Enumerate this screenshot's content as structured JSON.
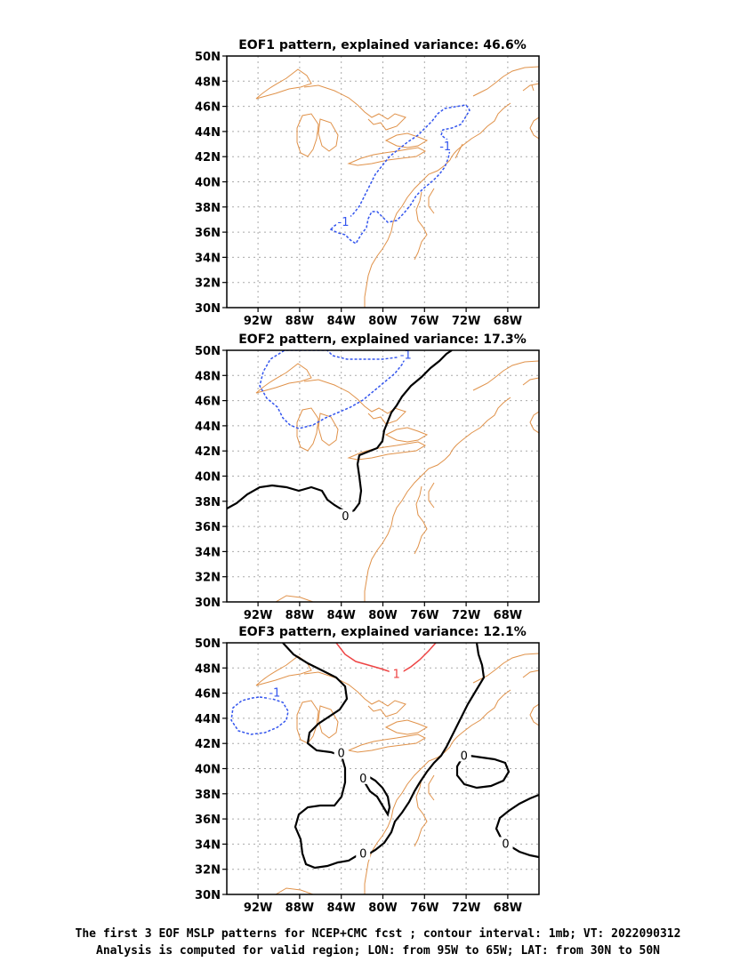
{
  "panels": [
    {
      "title": "EOF1 pattern, explained variance: 46.6%",
      "contour_labels": [
        {
          "text": "-1",
          "lon": -83.8,
          "lat": 36.8,
          "color": "#3355ee"
        },
        {
          "text": "-1",
          "lon": -74.0,
          "lat": 42.8,
          "color": "#3355ee"
        }
      ]
    },
    {
      "title": "EOF2 pattern, explained variance: 17.3%",
      "contour_labels": [
        {
          "text": "-1",
          "lon": -77.8,
          "lat": 49.6,
          "color": "#3355ee"
        },
        {
          "text": "0",
          "lon": -83.6,
          "lat": 36.8,
          "color": "#000000"
        }
      ]
    },
    {
      "title": "EOF3 pattern, explained variance: 12.1%",
      "contour_labels": [
        {
          "text": "1",
          "lon": -78.7,
          "lat": 47.5,
          "color": "#ee4444"
        },
        {
          "text": "-1",
          "lon": -90.4,
          "lat": 46.0,
          "color": "#3355ee"
        },
        {
          "text": "0",
          "lon": -84.0,
          "lat": 41.2,
          "color": "#000000"
        },
        {
          "text": "0",
          "lon": -81.9,
          "lat": 39.2,
          "color": "#000000"
        },
        {
          "text": "0",
          "lon": -81.9,
          "lat": 33.2,
          "color": "#000000"
        },
        {
          "text": "0",
          "lon": -72.2,
          "lat": 41.0,
          "color": "#000000"
        },
        {
          "text": "0",
          "lon": -68.2,
          "lat": 34.0,
          "color": "#000000"
        }
      ]
    }
  ],
  "axes": {
    "lon_range": [
      -95,
      -65
    ],
    "lat_range": [
      30,
      50
    ],
    "x_ticks": [
      "92W",
      "88W",
      "84W",
      "80W",
      "76W",
      "72W",
      "68W"
    ],
    "y_ticks": [
      "30N",
      "32N",
      "34N",
      "36N",
      "38N",
      "40N",
      "42N",
      "44N",
      "46N",
      "48N",
      "50N"
    ],
    "grid": true
  },
  "colors": {
    "coast": "#e0924a",
    "negative": "#3355ee",
    "positive": "#ee4444",
    "zero": "#000000",
    "grid": "#aaaaaa"
  },
  "caption": {
    "line1": "The first 3 EOF MSLP patterns for NCEP+CMC fcst ; contour interval: 1mb; VT: 2022090312",
    "line2": "Analysis is computed for valid region; LON: from 95W to 65W; LAT: from 30N to 50N"
  }
}
